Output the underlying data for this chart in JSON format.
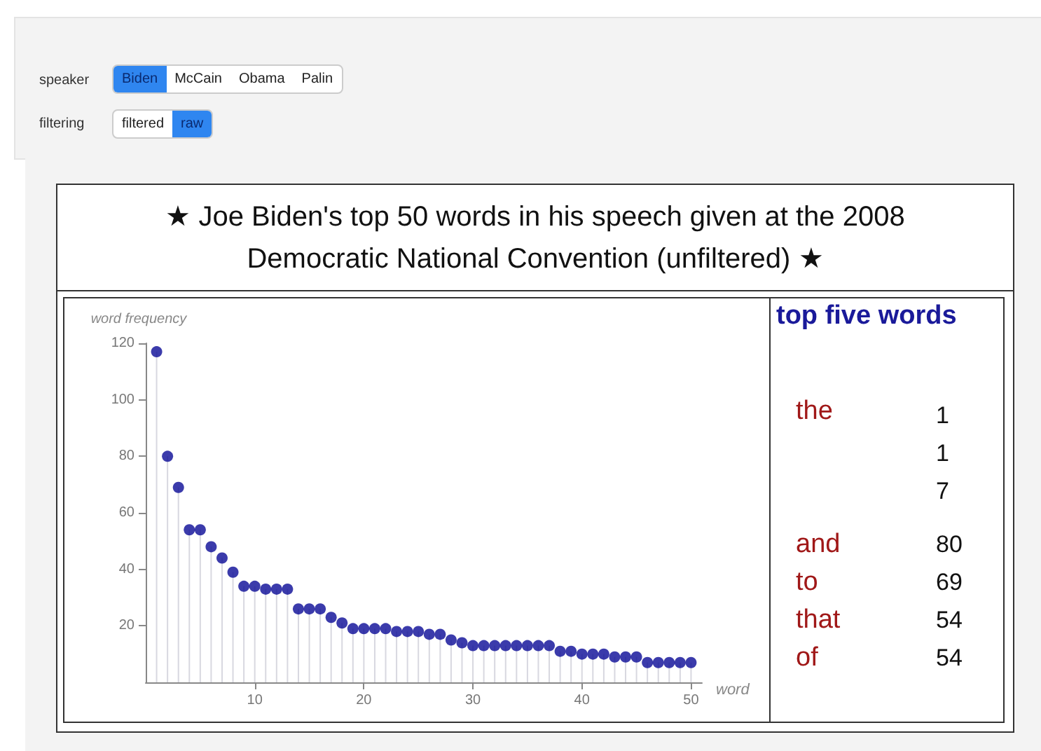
{
  "chart_data": {
    "type": "lollipop",
    "title": "★ Joe Biden's top 50 words in his speech given at the 2008 Democratic National Convention (unfiltered) ★",
    "xlabel": "word",
    "ylabel": "word frequency",
    "x": [
      1,
      2,
      3,
      4,
      5,
      6,
      7,
      8,
      9,
      10,
      11,
      12,
      13,
      14,
      15,
      16,
      17,
      18,
      19,
      20,
      21,
      22,
      23,
      24,
      25,
      26,
      27,
      28,
      29,
      30,
      31,
      32,
      33,
      34,
      35,
      36,
      37,
      38,
      39,
      40,
      41,
      42,
      43,
      44,
      45,
      46,
      47,
      48,
      49,
      50
    ],
    "values": [
      117,
      80,
      69,
      54,
      54,
      48,
      44,
      39,
      34,
      34,
      33,
      33,
      33,
      26,
      26,
      26,
      23,
      21,
      19,
      19,
      19,
      19,
      18,
      18,
      18,
      17,
      17,
      15,
      14,
      13,
      13,
      13,
      13,
      13,
      13,
      13,
      13,
      11,
      11,
      10,
      10,
      10,
      9,
      9,
      9,
      7,
      7,
      7,
      7,
      7
    ],
    "color": "#0a0a96",
    "marker": "circle",
    "xlim": [
      0,
      51
    ],
    "xticks": [
      10,
      20,
      30,
      40,
      50
    ],
    "ylim": [
      0,
      120
    ],
    "yticks": [
      20,
      40,
      60,
      80,
      100,
      120
    ],
    "grid": false,
    "annotations": [
      "speaker",
      "Biden",
      "McCain",
      "Obama",
      "Palin",
      "filtering",
      "filtered",
      "raw",
      "top five words",
      "the",
      "117",
      "and",
      "80",
      "to",
      "69",
      "that",
      "54",
      "of",
      "54"
    ]
  }
}
